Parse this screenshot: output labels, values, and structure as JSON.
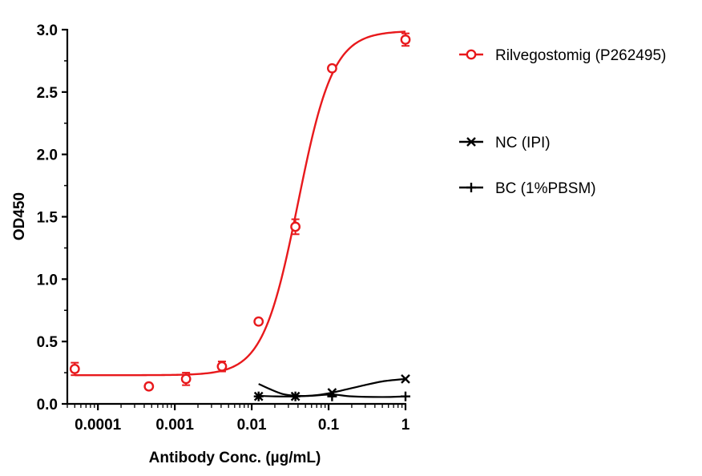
{
  "chart_data": {
    "type": "scatter",
    "xlabel": "Antibody Conc. (µg/mL)",
    "ylabel": "OD450",
    "xscale": "log",
    "xlim": [
      4e-05,
      1
    ],
    "ylim": [
      0,
      3.0
    ],
    "x_ticks": [
      {
        "value": 0.0001,
        "label": "0.0001"
      },
      {
        "value": 0.001,
        "label": "0.001"
      },
      {
        "value": 0.01,
        "label": "0.01"
      },
      {
        "value": 0.1,
        "label": "0.1"
      },
      {
        "value": 1,
        "label": "1"
      }
    ],
    "y_ticks": [
      {
        "value": 0,
        "label": "0.0"
      },
      {
        "value": 0.5,
        "label": "0.5"
      },
      {
        "value": 1.0,
        "label": "1.0"
      },
      {
        "value": 1.5,
        "label": "1.5"
      },
      {
        "value": 2.0,
        "label": "2.0"
      },
      {
        "value": 2.5,
        "label": "2.5"
      },
      {
        "value": 3.0,
        "label": "3.0"
      }
    ],
    "legend_position": "right",
    "series": [
      {
        "name": "Rilvegostomig (P262495)",
        "color": "#e8191c",
        "marker": "circle",
        "points": [
          {
            "x": 5e-05,
            "y": 0.28,
            "err": 0.05
          },
          {
            "x": 0.00046,
            "y": 0.14,
            "err": 0.0
          },
          {
            "x": 0.0014,
            "y": 0.2,
            "err": 0.05
          },
          {
            "x": 0.0041,
            "y": 0.3,
            "err": 0.04
          },
          {
            "x": 0.0123,
            "y": 0.66,
            "err": 0.0
          },
          {
            "x": 0.037,
            "y": 1.42,
            "err": 0.06
          },
          {
            "x": 0.111,
            "y": 2.69,
            "err": 0.0
          },
          {
            "x": 1.0,
            "y": 2.92,
            "err": 0.05
          }
        ],
        "fit": {
          "model": "4PL",
          "bottom": 0.23,
          "top": 2.99,
          "ec50": 0.04,
          "hill": 1.9
        }
      },
      {
        "name": "NC (IPI)",
        "color": "#000000",
        "marker": "x",
        "points": [
          {
            "x": 0.0123,
            "y": 0.06
          },
          {
            "x": 0.037,
            "y": 0.06
          },
          {
            "x": 0.111,
            "y": 0.09
          },
          {
            "x": 1.0,
            "y": 0.2
          }
        ],
        "curve": [
          [
            0.0123,
            0.065
          ],
          [
            0.02,
            0.06
          ],
          [
            0.037,
            0.06
          ],
          [
            0.07,
            0.07
          ],
          [
            0.111,
            0.09
          ],
          [
            0.25,
            0.14
          ],
          [
            0.5,
            0.18
          ],
          [
            1.0,
            0.2
          ]
        ]
      },
      {
        "name": "BC (1%PBSM)",
        "color": "#000000",
        "marker": "plus",
        "points": [
          {
            "x": 0.0123,
            "y": 0.06
          },
          {
            "x": 0.037,
            "y": 0.06
          },
          {
            "x": 0.111,
            "y": 0.06
          },
          {
            "x": 1.0,
            "y": 0.06
          }
        ],
        "curve": [
          [
            0.0123,
            0.16
          ],
          [
            0.017,
            0.12
          ],
          [
            0.025,
            0.08
          ],
          [
            0.037,
            0.065
          ],
          [
            0.06,
            0.065
          ],
          [
            0.111,
            0.075
          ],
          [
            0.2,
            0.06
          ],
          [
            0.5,
            0.055
          ],
          [
            1.0,
            0.06
          ]
        ]
      }
    ]
  }
}
